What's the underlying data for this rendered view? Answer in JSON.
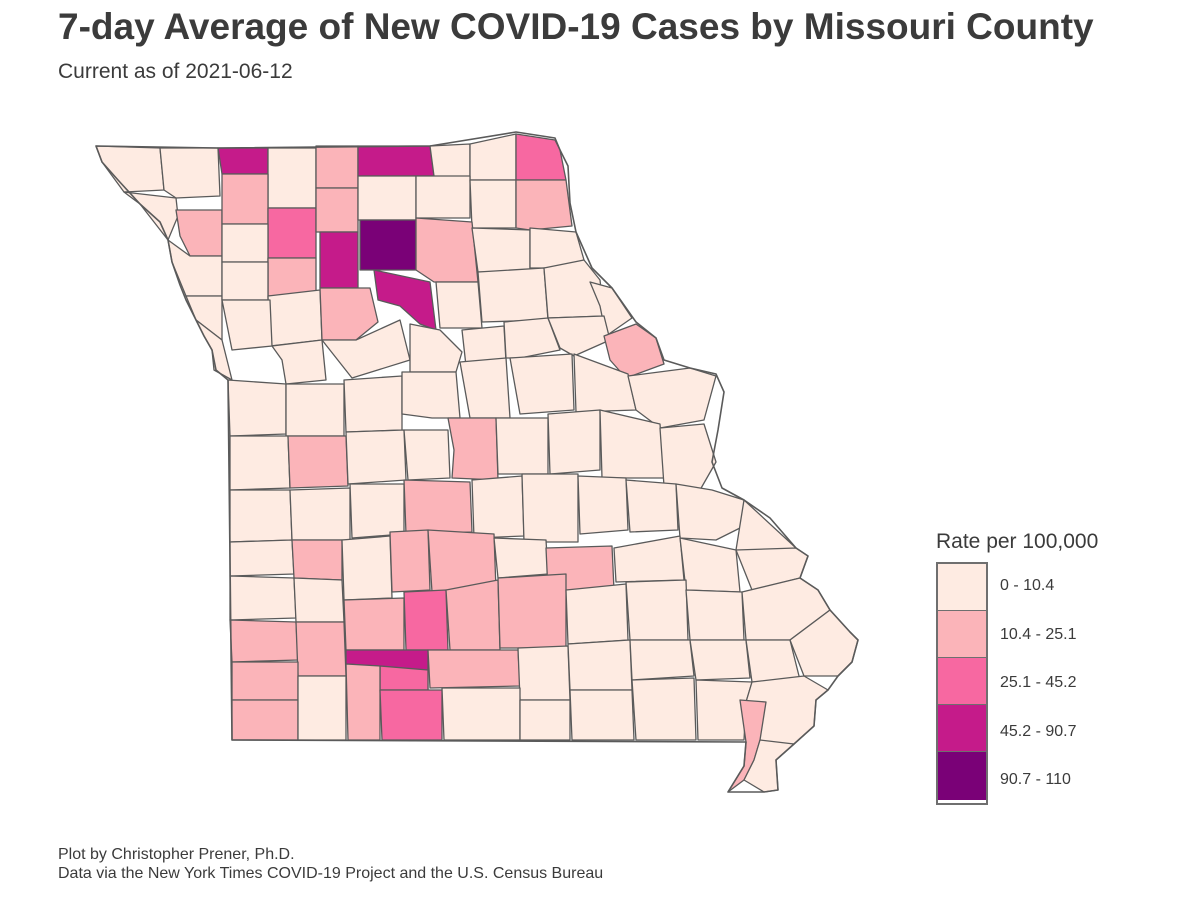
{
  "title": "7-day Average of New COVID-19 Cases by Missouri County",
  "subtitle": "Current as of 2021-06-12",
  "legend": {
    "title": "Rate per 100,000",
    "items": [
      {
        "label": "0 - 10.4",
        "color": "#feebe2"
      },
      {
        "label": "10.4 - 25.1",
        "color": "#fbb4b9"
      },
      {
        "label": "25.1 - 45.2",
        "color": "#f768a1"
      },
      {
        "label": "45.2 - 90.7",
        "color": "#c51b8a"
      },
      {
        "label": "90.7 - 110",
        "color": "#7a0177"
      }
    ]
  },
  "caption": {
    "line1": "Plot by Christopher Prener, Ph.D.",
    "line2": "Data via the New York Times COVID-19 Project and the U.S. Census Bureau"
  },
  "map": {
    "border_color": "#5a5a5a",
    "base_color": "#feebe2"
  }
}
